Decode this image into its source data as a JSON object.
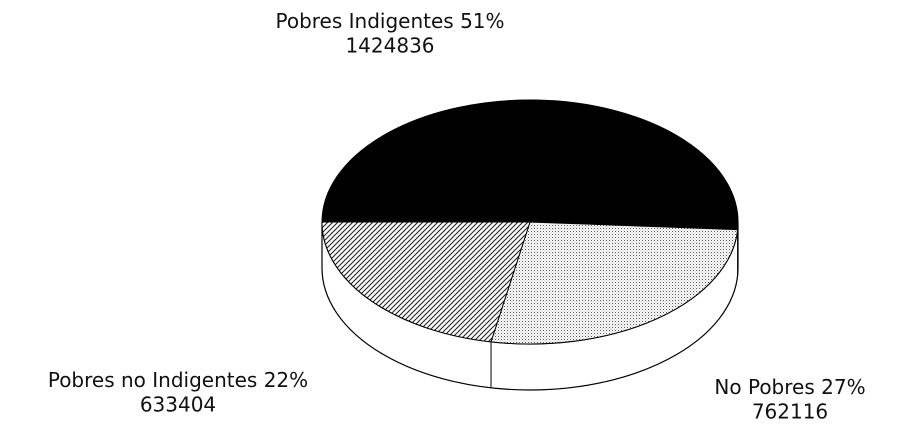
{
  "chart_data": {
    "type": "pie",
    "categories": [
      "Pobres Indigentes",
      "No Pobres",
      "Pobres no Indigentes"
    ],
    "values": [
      51,
      27,
      22
    ],
    "value_labels": [
      "51%",
      "27%",
      "22%"
    ],
    "counts": [
      1424836,
      762116,
      633404
    ],
    "colors": [
      "#000000",
      "#555555",
      "#222222"
    ],
    "patterns": [
      "solid",
      "stipple",
      "hatch"
    ]
  }
}
